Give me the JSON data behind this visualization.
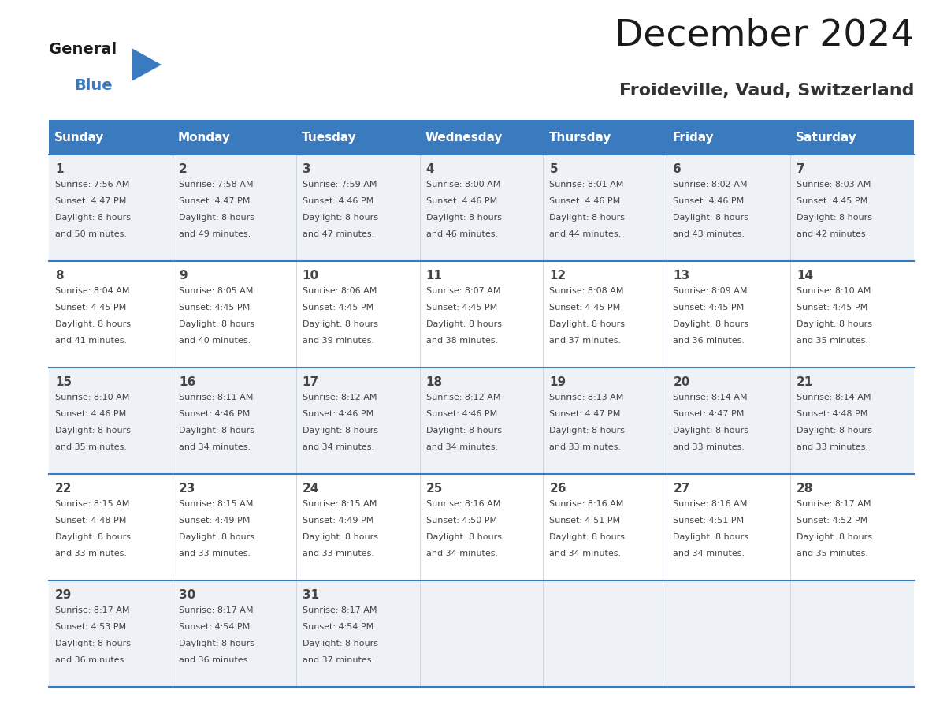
{
  "title": "December 2024",
  "subtitle": "Froideville, Vaud, Switzerland",
  "header_bg": "#3a7abf",
  "header_text": "#ffffff",
  "cell_bg_odd": "#eef2f7",
  "cell_bg_even": "#ffffff",
  "divider_color": "#3a7abf",
  "text_color": "#444444",
  "days_of_week": [
    "Sunday",
    "Monday",
    "Tuesday",
    "Wednesday",
    "Thursday",
    "Friday",
    "Saturday"
  ],
  "calendar": [
    [
      {
        "day": 1,
        "sunrise": "7:56 AM",
        "sunset": "4:47 PM",
        "daylight": "8 hours and 50 minutes."
      },
      {
        "day": 2,
        "sunrise": "7:58 AM",
        "sunset": "4:47 PM",
        "daylight": "8 hours and 49 minutes."
      },
      {
        "day": 3,
        "sunrise": "7:59 AM",
        "sunset": "4:46 PM",
        "daylight": "8 hours and 47 minutes."
      },
      {
        "day": 4,
        "sunrise": "8:00 AM",
        "sunset": "4:46 PM",
        "daylight": "8 hours and 46 minutes."
      },
      {
        "day": 5,
        "sunrise": "8:01 AM",
        "sunset": "4:46 PM",
        "daylight": "8 hours and 44 minutes."
      },
      {
        "day": 6,
        "sunrise": "8:02 AM",
        "sunset": "4:46 PM",
        "daylight": "8 hours and 43 minutes."
      },
      {
        "day": 7,
        "sunrise": "8:03 AM",
        "sunset": "4:45 PM",
        "daylight": "8 hours and 42 minutes."
      }
    ],
    [
      {
        "day": 8,
        "sunrise": "8:04 AM",
        "sunset": "4:45 PM",
        "daylight": "8 hours and 41 minutes."
      },
      {
        "day": 9,
        "sunrise": "8:05 AM",
        "sunset": "4:45 PM",
        "daylight": "8 hours and 40 minutes."
      },
      {
        "day": 10,
        "sunrise": "8:06 AM",
        "sunset": "4:45 PM",
        "daylight": "8 hours and 39 minutes."
      },
      {
        "day": 11,
        "sunrise": "8:07 AM",
        "sunset": "4:45 PM",
        "daylight": "8 hours and 38 minutes."
      },
      {
        "day": 12,
        "sunrise": "8:08 AM",
        "sunset": "4:45 PM",
        "daylight": "8 hours and 37 minutes."
      },
      {
        "day": 13,
        "sunrise": "8:09 AM",
        "sunset": "4:45 PM",
        "daylight": "8 hours and 36 minutes."
      },
      {
        "day": 14,
        "sunrise": "8:10 AM",
        "sunset": "4:45 PM",
        "daylight": "8 hours and 35 minutes."
      }
    ],
    [
      {
        "day": 15,
        "sunrise": "8:10 AM",
        "sunset": "4:46 PM",
        "daylight": "8 hours and 35 minutes."
      },
      {
        "day": 16,
        "sunrise": "8:11 AM",
        "sunset": "4:46 PM",
        "daylight": "8 hours and 34 minutes."
      },
      {
        "day": 17,
        "sunrise": "8:12 AM",
        "sunset": "4:46 PM",
        "daylight": "8 hours and 34 minutes."
      },
      {
        "day": 18,
        "sunrise": "8:12 AM",
        "sunset": "4:46 PM",
        "daylight": "8 hours and 34 minutes."
      },
      {
        "day": 19,
        "sunrise": "8:13 AM",
        "sunset": "4:47 PM",
        "daylight": "8 hours and 33 minutes."
      },
      {
        "day": 20,
        "sunrise": "8:14 AM",
        "sunset": "4:47 PM",
        "daylight": "8 hours and 33 minutes."
      },
      {
        "day": 21,
        "sunrise": "8:14 AM",
        "sunset": "4:48 PM",
        "daylight": "8 hours and 33 minutes."
      }
    ],
    [
      {
        "day": 22,
        "sunrise": "8:15 AM",
        "sunset": "4:48 PM",
        "daylight": "8 hours and 33 minutes."
      },
      {
        "day": 23,
        "sunrise": "8:15 AM",
        "sunset": "4:49 PM",
        "daylight": "8 hours and 33 minutes."
      },
      {
        "day": 24,
        "sunrise": "8:15 AM",
        "sunset": "4:49 PM",
        "daylight": "8 hours and 33 minutes."
      },
      {
        "day": 25,
        "sunrise": "8:16 AM",
        "sunset": "4:50 PM",
        "daylight": "8 hours and 34 minutes."
      },
      {
        "day": 26,
        "sunrise": "8:16 AM",
        "sunset": "4:51 PM",
        "daylight": "8 hours and 34 minutes."
      },
      {
        "day": 27,
        "sunrise": "8:16 AM",
        "sunset": "4:51 PM",
        "daylight": "8 hours and 34 minutes."
      },
      {
        "day": 28,
        "sunrise": "8:17 AM",
        "sunset": "4:52 PM",
        "daylight": "8 hours and 35 minutes."
      }
    ],
    [
      {
        "day": 29,
        "sunrise": "8:17 AM",
        "sunset": "4:53 PM",
        "daylight": "8 hours and 36 minutes."
      },
      {
        "day": 30,
        "sunrise": "8:17 AM",
        "sunset": "4:54 PM",
        "daylight": "8 hours and 36 minutes."
      },
      {
        "day": 31,
        "sunrise": "8:17 AM",
        "sunset": "4:54 PM",
        "daylight": "8 hours and 37 minutes."
      },
      null,
      null,
      null,
      null
    ]
  ],
  "logo_text_general": "General",
  "logo_text_blue": "Blue",
  "logo_triangle_color": "#3a7abf",
  "logo_general_color": "#1a1a1a"
}
